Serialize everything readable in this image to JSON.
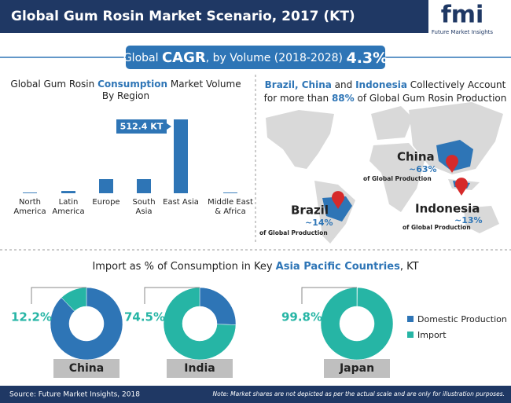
{
  "header": {
    "title": "Global Gum Rosin Market Scenario, 2017 (KT)",
    "logo": "fmi",
    "logo_sub": "Future Market Insights"
  },
  "cagr": {
    "prefix": "Global",
    "label": "CAGR",
    "text": ", by Volume (2018-2028)",
    "value": "4.3%"
  },
  "map": {
    "title": [
      "Brazil, China",
      " and ",
      "Indonesia",
      " Collectively Account for more than ",
      "88%",
      " of Global Gum Rosin Production"
    ],
    "countries": [
      {
        "name": "China",
        "share": "~63%",
        "note": "of Global Production"
      },
      {
        "name": "Brazil",
        "share": "~14%",
        "note": "of Global Production"
      },
      {
        "name": "Indonesia",
        "share": "~13%",
        "note": "of Global Production"
      }
    ]
  },
  "import_title": [
    "Import as % of Consumption in Key ",
    "Asia Pacific Countries",
    ", KT"
  ],
  "chart_data": [
    {
      "type": "bar",
      "title": [
        "Global Gum Rosin ",
        "Consumption",
        " Market Volume By Region"
      ],
      "categories": [
        "North America",
        "Latin America",
        "Europe",
        "South Asia",
        "East Asia",
        "Middle East & Africa"
      ],
      "values": [
        5,
        16,
        98,
        98,
        512.4,
        5
      ],
      "value_labels": [
        null,
        null,
        null,
        null,
        "512.4 KT",
        null
      ],
      "color": "#2e75b6"
    },
    {
      "type": "pie",
      "title": "China",
      "categories": [
        "Domestic Production",
        "Import"
      ],
      "values": [
        87.8,
        12.2
      ],
      "value_labels": [
        null,
        "12.2%"
      ],
      "colors": [
        "#2e75b6",
        "#26b5a5"
      ]
    },
    {
      "type": "pie",
      "title": "India",
      "categories": [
        "Domestic Production",
        "Import"
      ],
      "values": [
        25.5,
        74.5
      ],
      "value_labels": [
        null,
        "74.5%"
      ],
      "colors": [
        "#2e75b6",
        "#26b5a5"
      ]
    },
    {
      "type": "pie",
      "title": "Japan",
      "categories": [
        "Domestic Production",
        "Import"
      ],
      "values": [
        0.2,
        99.8
      ],
      "value_labels": [
        null,
        "99.8%"
      ],
      "colors": [
        "#2e75b6",
        "#26b5a5"
      ]
    }
  ],
  "footer": {
    "source": "Source: Future Market Insights, 2018",
    "note": "Note: Market shares are not depicted as per the actual scale and are only for illustration purposes."
  }
}
